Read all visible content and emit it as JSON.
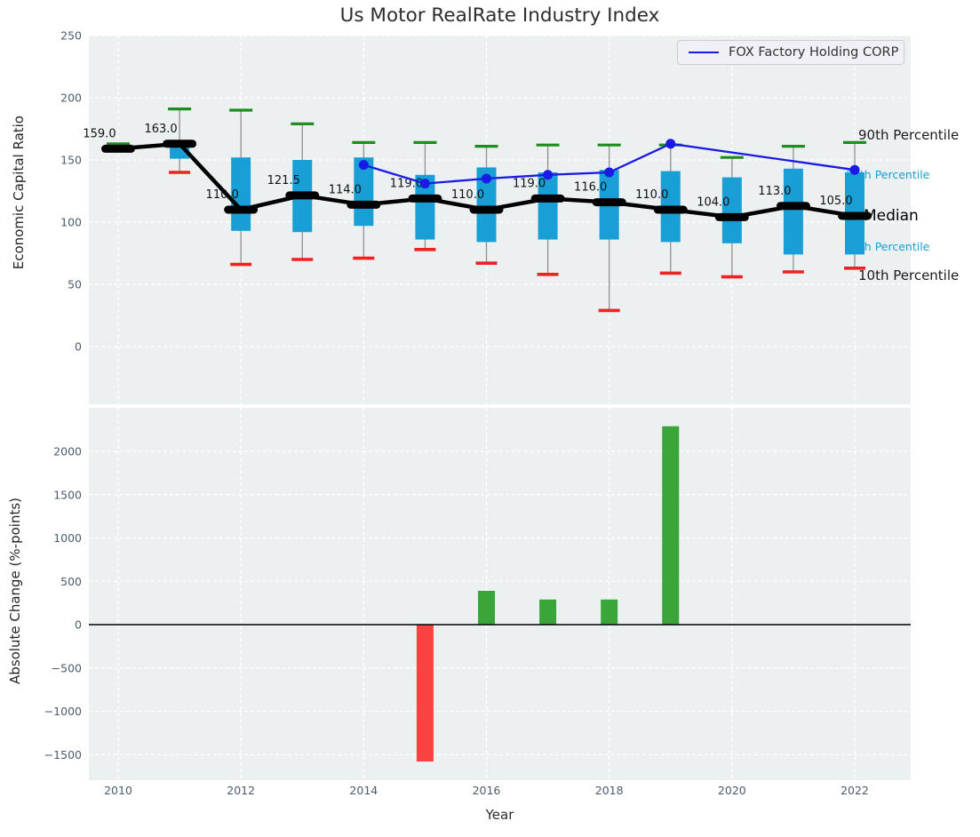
{
  "chart_data": [
    {
      "type": "boxplot",
      "title": "Us Motor RealRate Industry Index",
      "ylabel": "Economic Capital Ratio",
      "legend": "FOX Factory Holding CORP",
      "grid": true,
      "legend_position": "upper right",
      "yticks": [
        250,
        200,
        150,
        100,
        50,
        0
      ],
      "ylim": [
        -46,
        250
      ],
      "xticks": [
        2010,
        2012,
        2014,
        2016,
        2018,
        2020,
        2022
      ],
      "percentile_labels": {
        "p90": "90th Percentile",
        "p75": "75th Percentile",
        "median": "Median",
        "p25": "25th Percentile",
        "p10": "10th Percentile"
      },
      "boxes": [
        {
          "year": 2010,
          "label": "159.0",
          "median": 159.0,
          "p90": 163,
          "p75": null,
          "p25": null,
          "p10": null
        },
        {
          "year": 2011,
          "label": "163.0",
          "median": 163.0,
          "p90": 191,
          "p75": 163,
          "p25": 151,
          "p10": 140
        },
        {
          "year": 2012,
          "label": "110.0",
          "median": 110.0,
          "p90": 190,
          "p75": 152,
          "p25": 93,
          "p10": 66
        },
        {
          "year": 2013,
          "label": "121.5",
          "median": 121.5,
          "p90": 179,
          "p75": 150,
          "p25": 92,
          "p10": 70
        },
        {
          "year": 2014,
          "label": "114.0",
          "median": 114.0,
          "p90": 164,
          "p75": 152,
          "p25": 97,
          "p10": 71
        },
        {
          "year": 2015,
          "label": "119.0",
          "median": 119.0,
          "p90": 164,
          "p75": 138,
          "p25": 86,
          "p10": 78
        },
        {
          "year": 2016,
          "label": "110.0",
          "median": 110.0,
          "p90": 161,
          "p75": 144,
          "p25": 84,
          "p10": 67
        },
        {
          "year": 2017,
          "label": "119.0",
          "median": 119.0,
          "p90": 162,
          "p75": 140,
          "p25": 86,
          "p10": 58
        },
        {
          "year": 2018,
          "label": "116.0",
          "median": 116.0,
          "p90": 162,
          "p75": 142,
          "p25": 86,
          "p10": 29
        },
        {
          "year": 2019,
          "label": "110.0",
          "median": 110.0,
          "p90": 162,
          "p75": 141,
          "p25": 84,
          "p10": 59
        },
        {
          "year": 2020,
          "label": "104.0",
          "median": 104.0,
          "p90": 152,
          "p75": 136,
          "p25": 83,
          "p10": 56
        },
        {
          "year": 2021,
          "label": "113.0",
          "median": 113.0,
          "p90": 161,
          "p75": 143,
          "p25": 74,
          "p10": 60
        },
        {
          "year": 2022,
          "label": "105.0",
          "median": 105.0,
          "p90": 164,
          "p75": 140,
          "p25": 74,
          "p10": 63
        }
      ],
      "fox_series": {
        "name": "FOX Factory Holding CORP",
        "points": [
          [
            2014,
            146
          ],
          [
            2015,
            131
          ],
          [
            2016,
            135
          ],
          [
            2017,
            138
          ],
          [
            2018,
            140
          ],
          [
            2019,
            163
          ],
          [
            2022,
            142
          ]
        ]
      },
      "colors": {
        "box": "#189fd5",
        "whisker": "#909090",
        "median": "#000000",
        "p90_cap": "#1e8c1e",
        "p10_cap": "#ee2222",
        "fox_line": "#1a1ae6"
      }
    },
    {
      "type": "bar",
      "ylabel": "Absolute Change (%-points)",
      "xlabel": "Year",
      "yticks": [
        2000,
        1500,
        1000,
        500,
        0,
        -500,
        -1000,
        -1500
      ],
      "xticks": [
        2010,
        2012,
        2014,
        2016,
        2018,
        2020,
        2022
      ],
      "bars": [
        {
          "year": 2015,
          "value": -1580
        },
        {
          "year": 2016,
          "value": 390
        },
        {
          "year": 2017,
          "value": 290
        },
        {
          "year": 2018,
          "value": 290
        },
        {
          "year": 2019,
          "value": 2290
        }
      ],
      "colors": {
        "positive": "#3aa63a",
        "negative": "#f94343",
        "zero_line": "#000000"
      }
    }
  ]
}
